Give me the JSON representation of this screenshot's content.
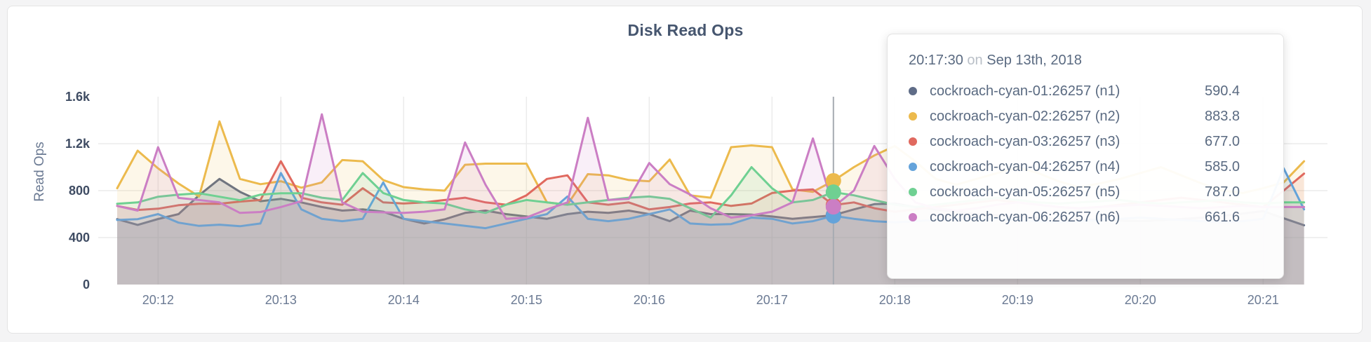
{
  "card": {
    "title": "Disk Read Ops"
  },
  "axes": {
    "ylabel": "Read Ops",
    "y_ticks": [
      {
        "value": 0,
        "label": "0",
        "grid": false
      },
      {
        "value": 400,
        "label": "400",
        "grid": true
      },
      {
        "value": 800,
        "label": "800",
        "grid": true
      },
      {
        "value": 1200,
        "label": "1.2k",
        "grid": true
      },
      {
        "value": 1600,
        "label": "1.6k",
        "grid": false
      }
    ],
    "x_tick_labels": [
      "20:12",
      "20:13",
      "20:14",
      "20:15",
      "20:16",
      "20:17",
      "20:18",
      "20:19",
      "20:20",
      "20:21"
    ]
  },
  "chart_data": {
    "type": "line",
    "title": "Disk Read Ops",
    "xlabel": "",
    "ylabel": "Read Ops",
    "ylim": [
      0,
      1600
    ],
    "grid": true,
    "legend_position": "tooltip",
    "x_start_time": "20:11:40",
    "x_step_seconds": 10,
    "x_tick_labels": [
      "20:12",
      "20:13",
      "20:14",
      "20:15",
      "20:16",
      "20:17",
      "20:18",
      "20:19",
      "20:20",
      "20:21"
    ],
    "hover": {
      "index": 35,
      "time": "20:17:30"
    },
    "series": [
      {
        "name": "cockroach-cyan-01:26257 (n1)",
        "color": "#5f6c87",
        "fill_opacity": 0.22,
        "values": [
          557,
          508,
          558,
          600,
          760,
          900,
          790,
          710,
          730,
          700,
          660,
          630,
          640,
          620,
          560,
          520,
          555,
          610,
          630,
          600,
          580,
          560,
          600,
          620,
          610,
          630,
          600,
          540,
          630,
          600,
          600,
          595,
          580,
          560,
          575,
          590.4,
          640,
          685,
          690,
          660,
          640,
          620,
          600,
          590,
          580,
          570,
          560,
          555,
          550,
          545,
          540,
          548,
          558,
          570,
          585,
          605,
          625,
          565,
          505
        ]
      },
      {
        "name": "cockroach-cyan-02:26257 (n2)",
        "color": "#ecba4d",
        "fill_opacity": 0.12,
        "values": [
          820,
          1140,
          990,
          860,
          750,
          1390,
          900,
          855,
          880,
          825,
          870,
          1060,
          1050,
          890,
          830,
          810,
          800,
          1020,
          1030,
          1030,
          1030,
          700,
          680,
          940,
          930,
          890,
          880,
          1065,
          760,
          740,
          1170,
          1185,
          1170,
          810,
          790,
          883.8,
          1000,
          1100,
          1180,
          1050,
          900,
          850,
          900,
          950,
          1000,
          950,
          880,
          830,
          860,
          900,
          950,
          1000,
          930,
          860,
          800,
          780,
          820,
          870,
          1050
        ]
      },
      {
        "name": "cockroach-cyan-03:26257 (n3)",
        "color": "#e0695f",
        "fill_opacity": 0.12,
        "values": [
          670,
          635,
          646,
          676,
          688,
          688,
          707,
          720,
          1050,
          740,
          700,
          680,
          820,
          700,
          690,
          700,
          720,
          740,
          700,
          680,
          760,
          900,
          930,
          700,
          680,
          700,
          640,
          660,
          690,
          700,
          670,
          690,
          780,
          800,
          810,
          677,
          700,
          650,
          620,
          640,
          660,
          680,
          700,
          720,
          700,
          680,
          660,
          650,
          660,
          680,
          700,
          720,
          740,
          720,
          700,
          680,
          660,
          800,
          945
        ]
      },
      {
        "name": "cockroach-cyan-04:26257 (n4)",
        "color": "#64a3da",
        "fill_opacity": 0.12,
        "values": [
          550,
          557,
          600,
          527,
          500,
          510,
          497,
          520,
          950,
          640,
          560,
          540,
          560,
          870,
          560,
          540,
          520,
          500,
          480,
          520,
          560,
          600,
          750,
          560,
          540,
          560,
          600,
          640,
          520,
          510,
          515,
          570,
          560,
          520,
          540,
          585,
          560,
          540,
          530,
          540,
          550,
          560,
          570,
          560,
          550,
          540,
          530,
          540,
          550,
          560,
          570,
          560,
          550,
          540,
          530,
          540,
          560,
          990,
          640
        ]
      },
      {
        "name": "cockroach-cyan-05:26257 (n5)",
        "color": "#6fd092",
        "fill_opacity": 0.12,
        "values": [
          688,
          700,
          748,
          766,
          778,
          748,
          718,
          766,
          778,
          778,
          740,
          720,
          950,
          780,
          720,
          700,
          690,
          640,
          610,
          680,
          720,
          700,
          680,
          700,
          720,
          740,
          750,
          730,
          650,
          570,
          760,
          1000,
          820,
          700,
          720,
          787,
          760,
          720,
          680,
          660,
          680,
          700,
          720,
          740,
          720,
          700,
          690,
          700,
          710,
          720,
          700,
          690,
          700,
          710,
          720,
          700,
          690,
          700,
          700
        ]
      },
      {
        "name": "cockroach-cyan-06:26257 (n6)",
        "color": "#cb7ec4",
        "fill_opacity": 0.12,
        "values": [
          670,
          630,
          1170,
          738,
          720,
          700,
          610,
          618,
          660,
          710,
          1450,
          700,
          620,
          615,
          610,
          620,
          640,
          1210,
          850,
          560,
          570,
          640,
          700,
          1420,
          720,
          730,
          1035,
          855,
          767,
          650,
          570,
          590,
          620,
          700,
          1245,
          661.6,
          800,
          1180,
          900,
          700,
          650,
          630,
          650,
          680,
          700,
          680,
          660,
          650,
          660,
          670,
          680,
          670,
          660,
          650,
          660,
          670,
          660,
          660,
          660
        ]
      }
    ]
  },
  "tooltip": {
    "time": "20:17:30",
    "on_word": "on",
    "date": "Sep 13th, 2018",
    "rows": [
      {
        "label": "cockroach-cyan-01:26257 (n1)",
        "value": "590.4",
        "color": "#5f6c87"
      },
      {
        "label": "cockroach-cyan-02:26257 (n2)",
        "value": "883.8",
        "color": "#ecba4d"
      },
      {
        "label": "cockroach-cyan-03:26257 (n3)",
        "value": "677.0",
        "color": "#e0695f"
      },
      {
        "label": "cockroach-cyan-04:26257 (n4)",
        "value": "585.0",
        "color": "#64a3da"
      },
      {
        "label": "cockroach-cyan-05:26257 (n5)",
        "value": "787.0",
        "color": "#6fd092"
      },
      {
        "label": "cockroach-cyan-06:26257 (n6)",
        "value": "661.6",
        "color": "#cb7ec4"
      }
    ]
  },
  "style": {
    "grid_color": "#ebebeb",
    "axis_text_color": "#6b7a93",
    "crosshair_color": "#a6abb2"
  }
}
